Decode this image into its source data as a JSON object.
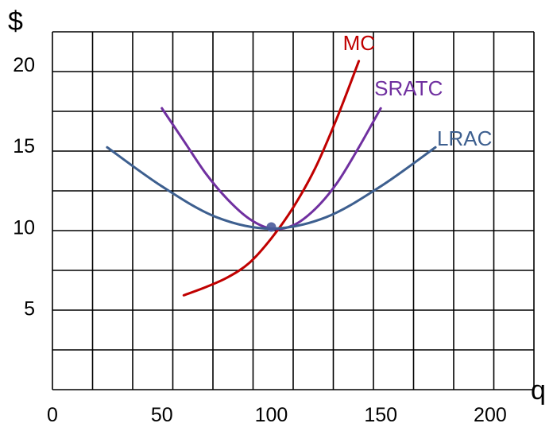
{
  "chart_data": {
    "type": "line",
    "ylabel": "$",
    "xlabel": "q",
    "xlim": [
      0,
      220
    ],
    "ylim": [
      0,
      22
    ],
    "grid": true,
    "x_ticks": [
      0,
      50,
      100,
      150,
      200
    ],
    "y_ticks": [
      5,
      10,
      15,
      20
    ],
    "series": [
      {
        "name": "MC",
        "color": "#c00000",
        "x": [
          60,
          70,
          80,
          90,
          100,
          110,
          120,
          130,
          140
        ],
        "y": [
          5.8,
          6.3,
          6.9,
          7.8,
          9.3,
          11.2,
          13.6,
          16.7,
          20.2
        ]
      },
      {
        "name": "SRATC",
        "color": "#7030a0",
        "x": [
          50,
          60,
          70,
          80,
          90,
          100,
          110,
          120,
          130,
          140,
          150
        ],
        "y": [
          17.3,
          15.3,
          13.3,
          11.7,
          10.5,
          9.9,
          10.1,
          11.1,
          12.7,
          14.9,
          17.3
        ]
      },
      {
        "name": "LRAC",
        "color": "#3d5f8f",
        "x": [
          25,
          50,
          75,
          100,
          125,
          150,
          175
        ],
        "y": [
          14.9,
          12.5,
          10.6,
          9.9,
          10.6,
          12.5,
          14.9
        ]
      }
    ],
    "points": [
      {
        "x": 100,
        "y": 10,
        "color": "#4a5a9a"
      }
    ]
  }
}
